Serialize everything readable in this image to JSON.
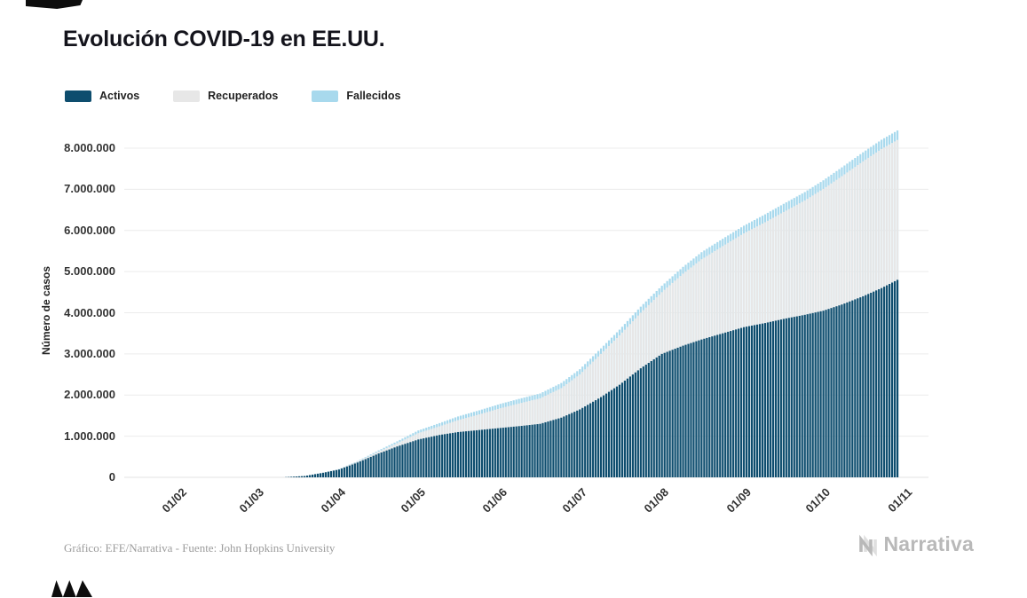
{
  "page": {
    "title": "Evolución COVID-19 en EE.UU.",
    "footer": "Gráfico: EFE/Narrativa - Fuente: John Hopkins University",
    "brand": "Narrativa"
  },
  "legend": {
    "items": [
      {
        "label": "Activos",
        "color": "#0e4d6e"
      },
      {
        "label": "Recuperados",
        "color": "#e7e7e7"
      },
      {
        "label": "Fallecidos",
        "color": "#a8d9ed"
      }
    ]
  },
  "chart_data": {
    "type": "bar",
    "subtype": "stacked-daily-bars",
    "title": "Evolución COVID-19 en EE.UU.",
    "xlabel": "",
    "ylabel": "Número de casos",
    "ylim": [
      0,
      8000000
    ],
    "grid": "horizontal",
    "legend_position": "top-left",
    "yticks": [
      "0",
      "1.000.000",
      "2.000.000",
      "3.000.000",
      "4.000.000",
      "5.000.000",
      "6.000.000",
      "7.000.000",
      "8.000.000"
    ],
    "xticks": [
      {
        "label": "01/02",
        "day": 0
      },
      {
        "label": "01/03",
        "day": 29
      },
      {
        "label": "01/04",
        "day": 60
      },
      {
        "label": "01/05",
        "day": 90
      },
      {
        "label": "01/06",
        "day": 121
      },
      {
        "label": "01/07",
        "day": 151
      },
      {
        "label": "01/08",
        "day": 182
      },
      {
        "label": "01/09",
        "day": 213
      },
      {
        "label": "01/10",
        "day": 243
      },
      {
        "label": "01/11",
        "day": 274
      }
    ],
    "series": [
      "Activos",
      "Recuperados",
      "Fallecidos"
    ],
    "colors": {
      "activos": "#0e4d6e",
      "recuperados": "#e7e7e7",
      "fallecidos": "#a8d9ed"
    },
    "first_day": 40,
    "last_day": 271,
    "anchors": [
      {
        "day": 0,
        "activos": 0,
        "recuperados": 0,
        "fallecidos": 0
      },
      {
        "day": 29,
        "activos": 100,
        "recuperados": 0,
        "fallecidos": 0
      },
      {
        "day": 40,
        "activos": 6000,
        "recuperados": 0,
        "fallecidos": 100
      },
      {
        "day": 47,
        "activos": 32000,
        "recuperados": 200,
        "fallecidos": 600
      },
      {
        "day": 54,
        "activos": 110000,
        "recuperados": 3000,
        "fallecidos": 1900
      },
      {
        "day": 60,
        "activos": 190000,
        "recuperados": 8000,
        "fallecidos": 4100
      },
      {
        "day": 67,
        "activos": 360000,
        "recuperados": 20000,
        "fallecidos": 13000
      },
      {
        "day": 75,
        "activos": 580000,
        "recuperados": 45000,
        "fallecidos": 30000
      },
      {
        "day": 82,
        "activos": 750000,
        "recuperados": 80000,
        "fallecidos": 45000
      },
      {
        "day": 90,
        "activos": 920000,
        "recuperados": 155000,
        "fallecidos": 65000
      },
      {
        "day": 98,
        "activos": 1030000,
        "recuperados": 210000,
        "fallecidos": 78000
      },
      {
        "day": 105,
        "activos": 1100000,
        "recuperados": 290000,
        "fallecidos": 90000
      },
      {
        "day": 113,
        "activos": 1150000,
        "recuperados": 380000,
        "fallecidos": 98000
      },
      {
        "day": 121,
        "activos": 1200000,
        "recuperados": 480000,
        "fallecidos": 106000
      },
      {
        "day": 129,
        "activos": 1250000,
        "recuperados": 560000,
        "fallecidos": 113000
      },
      {
        "day": 136,
        "activos": 1300000,
        "recuperados": 620000,
        "fallecidos": 118000
      },
      {
        "day": 144,
        "activos": 1450000,
        "recuperados": 720000,
        "fallecidos": 123000
      },
      {
        "day": 151,
        "activos": 1650000,
        "recuperados": 850000,
        "fallecidos": 128000
      },
      {
        "day": 159,
        "activos": 1950000,
        "recuperados": 1050000,
        "fallecidos": 134000
      },
      {
        "day": 166,
        "activos": 2250000,
        "recuperados": 1200000,
        "fallecidos": 139000
      },
      {
        "day": 174,
        "activos": 2650000,
        "recuperados": 1350000,
        "fallecidos": 148000
      },
      {
        "day": 182,
        "activos": 3000000,
        "recuperados": 1500000,
        "fallecidos": 156000
      },
      {
        "day": 190,
        "activos": 3200000,
        "recuperados": 1750000,
        "fallecidos": 165000
      },
      {
        "day": 197,
        "activos": 3350000,
        "recuperados": 1950000,
        "fallecidos": 172000
      },
      {
        "day": 205,
        "activos": 3500000,
        "recuperados": 2120000,
        "fallecidos": 179000
      },
      {
        "day": 213,
        "activos": 3650000,
        "recuperados": 2280000,
        "fallecidos": 186000
      },
      {
        "day": 221,
        "activos": 3750000,
        "recuperados": 2450000,
        "fallecidos": 192000
      },
      {
        "day": 228,
        "activos": 3850000,
        "recuperados": 2600000,
        "fallecidos": 197000
      },
      {
        "day": 236,
        "activos": 3950000,
        "recuperados": 2780000,
        "fallecidos": 203000
      },
      {
        "day": 243,
        "activos": 4050000,
        "recuperados": 2960000,
        "fallecidos": 209000
      },
      {
        "day": 250,
        "activos": 4200000,
        "recuperados": 3120000,
        "fallecidos": 214000
      },
      {
        "day": 258,
        "activos": 4400000,
        "recuperados": 3280000,
        "fallecidos": 219000
      },
      {
        "day": 265,
        "activos": 4600000,
        "recuperados": 3380000,
        "fallecidos": 225000
      },
      {
        "day": 271,
        "activos": 4800000,
        "recuperados": 3400000,
        "fallecidos": 230000
      }
    ]
  }
}
